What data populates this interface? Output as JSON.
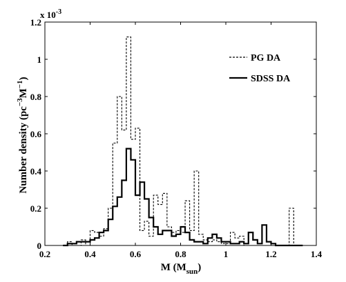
{
  "chart_data": {
    "type": "line",
    "xlabel": "M (M",
    "xlabel_sub": "sun",
    "xlabel_close": ")",
    "ylabel": "Number density (pc",
    "ylabel_sup1": "−3",
    "ylabel_mid": "M",
    "ylabel_sup2": "−1",
    "ylabel_close": ")",
    "y_exponent_base": "x 10",
    "y_exponent_power": "-3",
    "xlim": [
      0.2,
      1.4
    ],
    "ylim": [
      0,
      1.2
    ],
    "xticks": [
      "0.2",
      "0.4",
      "0.6",
      "0.8",
      "1",
      "1.2",
      "1.4"
    ],
    "yticks": [
      "0",
      "0.2",
      "0.4",
      "0.6",
      "0.8",
      "1",
      "1.2"
    ],
    "legend_position": "top-right",
    "bin_edges": [
      0.28,
      0.3,
      0.32,
      0.34,
      0.36,
      0.38,
      0.4,
      0.42,
      0.44,
      0.46,
      0.48,
      0.5,
      0.52,
      0.54,
      0.56,
      0.58,
      0.6,
      0.62,
      0.64,
      0.66,
      0.68,
      0.7,
      0.72,
      0.74,
      0.76,
      0.78,
      0.8,
      0.82,
      0.84,
      0.86,
      0.88,
      0.9,
      0.92,
      0.94,
      0.96,
      0.98,
      1.0,
      1.02,
      1.04,
      1.06,
      1.08,
      1.1,
      1.12,
      1.14,
      1.16,
      1.18,
      1.2,
      1.22,
      1.24,
      1.26,
      1.28,
      1.3,
      1.32,
      1.34
    ],
    "series": [
      {
        "name": "PG DA",
        "style": "dashed",
        "values": [
          0,
          0.02,
          0,
          0,
          0.03,
          0,
          0.08,
          0.07,
          0.05,
          0.09,
          0.2,
          0.55,
          0.8,
          0.62,
          1.12,
          0.57,
          0.63,
          0.08,
          0.13,
          0.05,
          0.27,
          0.22,
          0.28,
          0.1,
          0.07,
          0.08,
          0.07,
          0.24,
          0.08,
          0.4,
          0.06,
          0.03,
          0.02,
          0.03,
          0.02,
          0.01,
          0.01,
          0.07,
          0.04,
          0.05,
          0,
          0,
          0,
          0,
          0,
          0,
          0,
          0,
          0,
          0,
          0.2,
          0,
          0
        ]
      },
      {
        "name": "SDSS DA",
        "style": "solid",
        "values": [
          0,
          0.01,
          0.01,
          0.02,
          0.02,
          0.02,
          0.03,
          0.04,
          0.07,
          0.08,
          0.14,
          0.21,
          0.26,
          0.35,
          0.52,
          0.46,
          0.27,
          0.34,
          0.25,
          0.15,
          0.1,
          0.06,
          0.08,
          0.08,
          0.05,
          0.06,
          0.1,
          0.07,
          0.03,
          0.02,
          0.02,
          0.01,
          0.04,
          0.06,
          0.04,
          0.02,
          0.02,
          0.01,
          0.01,
          0.02,
          0.01,
          0.07,
          0.03,
          0.01,
          0.11,
          0.02,
          0.01,
          0,
          0,
          0,
          0,
          0,
          0
        ]
      }
    ]
  }
}
